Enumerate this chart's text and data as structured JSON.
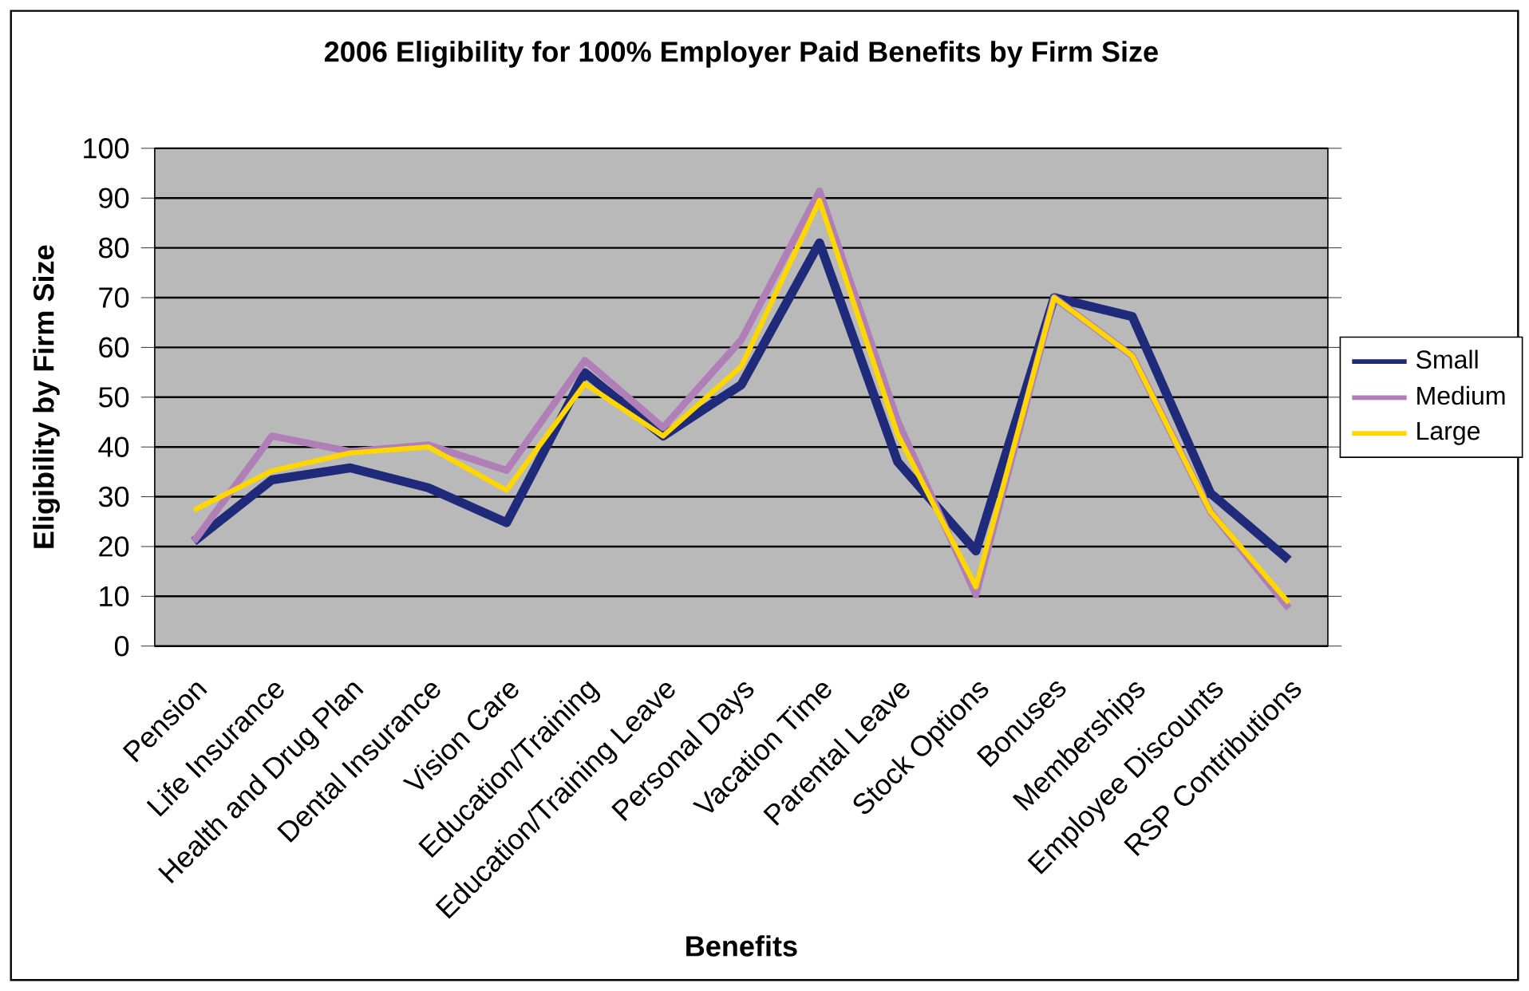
{
  "chart_data": {
    "type": "line",
    "title": "2006 Eligibility for 100% Employer Paid Benefits by Firm Size",
    "xlabel": "Benefits",
    "ylabel": "Eligibility by Firm Size",
    "categories": [
      "Pension",
      "Life Insurance",
      "Health and Drug Plan",
      "Dental Insurance",
      "Vision Care",
      "Education/Training",
      "Education/Training Leave",
      "Personal Days",
      "Vacation Time",
      "Parental Leave",
      "Stock Options",
      "Bonuses",
      "Memberships",
      "Employee Discounts",
      "RSP Contributions"
    ],
    "series": [
      {
        "name": "Small",
        "color": "#1f2a7a",
        "values": [
          21,
          33.4,
          35.8,
          31.8,
          24.8,
          54.9,
          42.2,
          52.5,
          81,
          37,
          19.1,
          70,
          66.2,
          30.7,
          17.3
        ]
      },
      {
        "name": "Medium",
        "color": "#b07fb8",
        "values": [
          21,
          42.2,
          39.1,
          40.4,
          35.3,
          57.4,
          43.9,
          61.5,
          91.4,
          45.2,
          10.3,
          70,
          58.3,
          27,
          7.6
        ]
      },
      {
        "name": "Large",
        "color": "#ffd700",
        "values": [
          27.3,
          35.2,
          38.8,
          40,
          31.3,
          52.7,
          42.2,
          56.2,
          89.5,
          42.5,
          11.9,
          70,
          58.3,
          27,
          8.7
        ]
      }
    ],
    "ylim": [
      0,
      100
    ],
    "yticks": [
      0,
      10,
      20,
      30,
      40,
      50,
      60,
      70,
      80,
      90,
      100
    ],
    "grid": "y",
    "legend": "right",
    "marker": "none",
    "line_style": "solid"
  }
}
